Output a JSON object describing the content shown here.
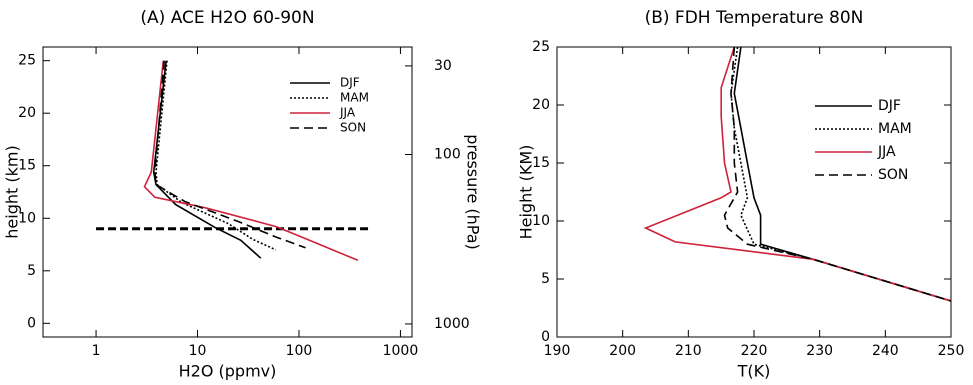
{
  "chart_data": [
    {
      "type": "line",
      "title": "(A) ACE H2O 60-90N",
      "xlabel": "H2O (ppmv)",
      "ylabel": "height (km)",
      "y2label": "pressure (hPa)",
      "xscale": "log",
      "xlim": [
        0.3,
        1300
      ],
      "xticks": [
        1,
        10,
        100,
        1000
      ],
      "ylim": [
        -1.3,
        26.3
      ],
      "yticks": [
        0,
        5,
        10,
        15,
        20,
        25
      ],
      "y2scale": "log",
      "y2lim": [
        1194,
        23.2
      ],
      "y2ticks": [
        30,
        100,
        1000
      ],
      "legend": "upper right",
      "hline": {
        "y": 9,
        "x": [
          1,
          500
        ],
        "color": "#000000"
      },
      "series": [
        {
          "name": "DJF",
          "color": "#000000",
          "dash": "solid",
          "x": [
            4.9,
            3.7,
            3.9,
            6.1,
            15,
            26.7,
            42
          ],
          "values": [
            25,
            14.4,
            13.2,
            11.3,
            9.1,
            7.9,
            6.2
          ]
        },
        {
          "name": "MAM",
          "color": "#000000",
          "dash": "dotted",
          "x": [
            5,
            3.9,
            4.0,
            7,
            20,
            35,
            59
          ],
          "values": [
            25,
            14.4,
            13.2,
            11.5,
            9.5,
            8,
            7
          ]
        },
        {
          "name": "JJA",
          "color": "#d0203a",
          "dash": "solid",
          "x": [
            4.6,
            3.5,
            3.0,
            3.8,
            12,
            60,
            120,
            380
          ],
          "values": [
            25,
            14.4,
            13,
            12,
            11,
            9.2,
            8,
            6
          ]
        },
        {
          "name": "SON",
          "color": "#000000",
          "dash": "dashed",
          "x": [
            4.7,
            3.8,
            3.9,
            7.5,
            25,
            60,
            116
          ],
          "values": [
            25,
            14.4,
            13.2,
            11.6,
            9.7,
            8.2,
            7.2
          ]
        }
      ]
    },
    {
      "type": "line",
      "title": "(B) FDH Temperature 80N",
      "xlabel": "T(K)",
      "ylabel": "Height (KM)",
      "xlim": [
        190,
        250
      ],
      "xticks": [
        190,
        200,
        210,
        220,
        230,
        240,
        250
      ],
      "ylim": [
        0,
        25
      ],
      "yticks": [
        0,
        5,
        10,
        15,
        20,
        25
      ],
      "legend": "upper right",
      "series": [
        {
          "name": "DJF",
          "color": "#000000",
          "dash": "solid",
          "x": [
            218,
            217,
            218,
            219,
            220,
            221,
            221,
            229,
            250
          ],
          "values": [
            25,
            21,
            18,
            15,
            12,
            10.5,
            8,
            6.7,
            3.1
          ]
        },
        {
          "name": "MAM",
          "color": "#000000",
          "dash": "dotted",
          "x": [
            217.5,
            216.5,
            217,
            218,
            219,
            218,
            220,
            229,
            250
          ],
          "values": [
            25,
            21,
            18,
            15,
            12,
            10.5,
            8,
            6.7,
            3.1
          ]
        },
        {
          "name": "JJA",
          "color": "#d0203a",
          "dash": "solid",
          "x": [
            217,
            215,
            215,
            215.5,
            216.5,
            215,
            203.5,
            208,
            229,
            250
          ],
          "values": [
            25,
            21.5,
            19,
            15,
            12.5,
            12,
            9.4,
            8.2,
            6.7,
            3.1
          ]
        },
        {
          "name": "SON",
          "color": "#000000",
          "dash": "dashed",
          "x": [
            217,
            216.5,
            217,
            217,
            217.5,
            215.5,
            216,
            219,
            229,
            250
          ],
          "values": [
            25,
            21,
            18,
            15,
            12.5,
            10.5,
            9.4,
            8,
            6.7,
            3.1
          ]
        }
      ]
    }
  ]
}
